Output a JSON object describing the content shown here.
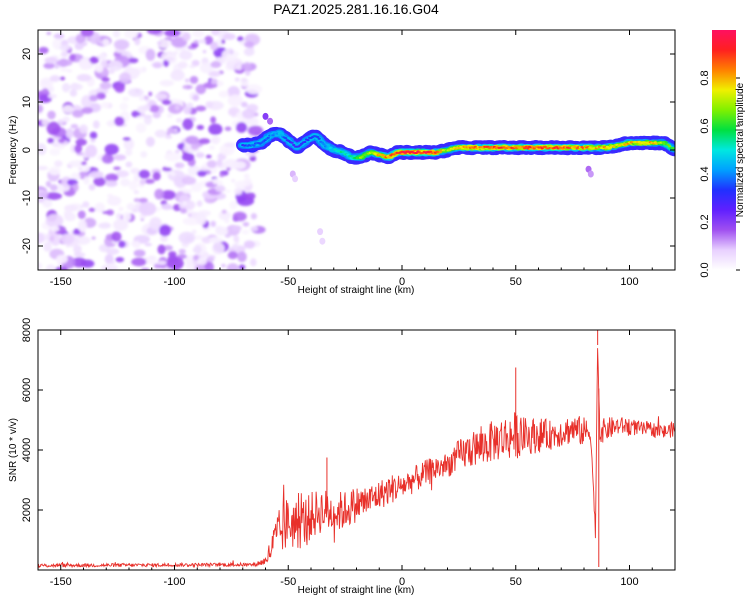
{
  "title": "PAZ1.2025.281.16.16.G04",
  "chart_data": [
    {
      "type": "heatmap",
      "name": "spectrogram",
      "xlabel": "Height of straight line (km)",
      "ylabel": "Frequency (Hz)",
      "xlim": [
        -160,
        120
      ],
      "ylim": [
        -25,
        25
      ],
      "xticks": [
        -150,
        -100,
        -50,
        0,
        50,
        100
      ],
      "yticks": [
        20,
        10,
        0,
        -10,
        -20
      ],
      "noise_region_x": [
        -160,
        -65
      ],
      "ridge": {
        "x": [
          -70,
          -66,
          -62,
          -58,
          -54,
          -50,
          -46,
          -42,
          -38,
          -34,
          -30,
          -26,
          -22,
          -18,
          -14,
          -10,
          -6,
          -2,
          0,
          5,
          10,
          15,
          20,
          25,
          30,
          35,
          40,
          45,
          50,
          55,
          60,
          65,
          70,
          75,
          80,
          85,
          90,
          95,
          100,
          105,
          110,
          115,
          120
        ],
        "frequency_hz": [
          1,
          1,
          1.5,
          3,
          3.5,
          2,
          0.5,
          2,
          3,
          1,
          0,
          -0.5,
          -1.5,
          -1.5,
          -0.5,
          -1,
          -1.5,
          -0.5,
          -0.5,
          -0.5,
          -0.5,
          -0.5,
          0,
          0.5,
          0.5,
          0.5,
          0.5,
          0.5,
          0.5,
          0.5,
          0.5,
          0.5,
          0.5,
          0.5,
          0.5,
          0.5,
          0.5,
          1,
          1.5,
          1.5,
          1.5,
          1.5,
          0
        ],
        "amplitude": [
          0.3,
          0.4,
          0.35,
          0.4,
          0.45,
          0.3,
          0.3,
          0.35,
          0.35,
          0.4,
          0.5,
          0.55,
          0.55,
          0.7,
          0.7,
          0.8,
          0.85,
          0.9,
          0.95,
          0.95,
          0.95,
          0.9,
          0.7,
          0.8,
          0.85,
          0.85,
          0.9,
          0.9,
          0.85,
          0.9,
          0.9,
          0.9,
          0.9,
          0.85,
          0.85,
          0.8,
          0.8,
          0.75,
          0.8,
          0.8,
          0.8,
          0.7,
          0.6
        ]
      },
      "colorbar": {
        "label": "Normalized spectral amplitude",
        "range": [
          0,
          1
        ],
        "ticks": [
          "0.0",
          "0.2",
          "0.4",
          "0.6",
          "0.8"
        ],
        "tick_values": [
          0,
          0.2,
          0.4,
          0.6,
          0.8
        ],
        "colormap": [
          "#ffffff",
          "#e8d0ff",
          "#a050f0",
          "#6020ff",
          "#2030ff",
          "#00a0ff",
          "#00e8e0",
          "#00e040",
          "#80f000",
          "#f0f000",
          "#ff8000",
          "#ff2020",
          "#ff1060"
        ]
      }
    },
    {
      "type": "line",
      "name": "snr",
      "xlabel": "Height of straight line (km)",
      "ylabel": "SNR (10 * v/v)",
      "xlim": [
        -160,
        120
      ],
      "ylim": [
        0,
        8000
      ],
      "xticks": [
        -150,
        -100,
        -50,
        0,
        50,
        100
      ],
      "yticks": [
        2000,
        4000,
        6000,
        8000
      ],
      "series": [
        {
          "name": "SNR",
          "color": "#e8302a",
          "x": [
            -160,
            -65,
            -60,
            -55,
            -50,
            -45,
            -40,
            -35,
            -30,
            -25,
            -20,
            -15,
            -10,
            -5,
            0,
            5,
            10,
            15,
            20,
            25,
            30,
            35,
            40,
            45,
            50,
            55,
            60,
            65,
            70,
            75,
            80,
            83,
            85,
            86,
            87,
            90,
            95,
            100,
            105,
            110,
            115,
            120
          ],
          "y": [
            150,
            180,
            300,
            1100,
            1600,
            1500,
            1800,
            2000,
            1900,
            2000,
            2200,
            2300,
            2500,
            2700,
            2800,
            3000,
            3200,
            3400,
            3500,
            3800,
            4000,
            4100,
            4300,
            4400,
            4500,
            4450,
            4500,
            4500,
            4600,
            4700,
            4600,
            4600,
            1200,
            7500,
            4600,
            4700,
            4800,
            4800,
            4700,
            4700,
            4600,
            4700
          ],
          "noise_amplitude": [
            60,
            60,
            150,
            800,
            900,
            850,
            800,
            750,
            700,
            650,
            600,
            550,
            500,
            500,
            450,
            450,
            450,
            450,
            400,
            550,
            600,
            650,
            700,
            750,
            800,
            600,
            600,
            500,
            500,
            500,
            500,
            400,
            300,
            300,
            400,
            400,
            300,
            300,
            250,
            250,
            250,
            250
          ]
        }
      ],
      "annotations": [
        {
          "x": -33,
          "y": 3750
        },
        {
          "x": 50,
          "y": 6750
        },
        {
          "x": 86,
          "y": 8000
        },
        {
          "x": 86.5,
          "y": 100
        }
      ]
    }
  ]
}
